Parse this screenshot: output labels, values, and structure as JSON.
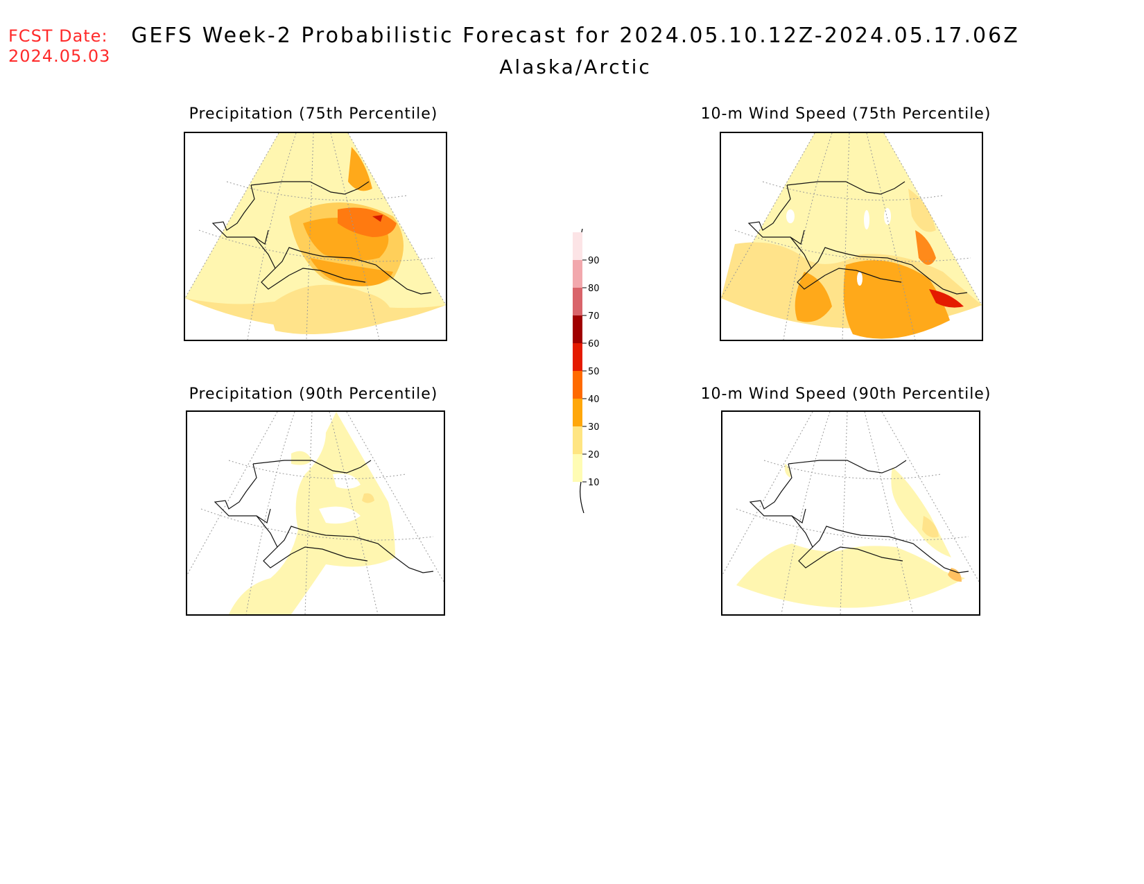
{
  "fcst_date": {
    "label": "FCST Date:",
    "value": "2024.05.03"
  },
  "title": "GEFS Week-2 Probabilistic Forecast for 2024.05.10.12Z-2024.05.17.06Z",
  "subtitle": "Alaska/Arctic",
  "panels": [
    {
      "title": "Precipitation (75th Percentile)"
    },
    {
      "title": "10-m Wind Speed (75th Percentile)"
    },
    {
      "title": "Precipitation (90th Percentile)"
    },
    {
      "title": "10-m Wind Speed (90th Percentile)"
    }
  ],
  "colorbar": {
    "levels": [
      "10",
      "20",
      "30",
      "40",
      "50",
      "60",
      "70",
      "80",
      "90"
    ],
    "colors": [
      "#fffcb4",
      "#ffe582",
      "#ffa70a",
      "#ff6a00",
      "#e41a00",
      "#a00000",
      "#d9646a",
      "#f2a8ad",
      "#fce4e6"
    ]
  }
}
